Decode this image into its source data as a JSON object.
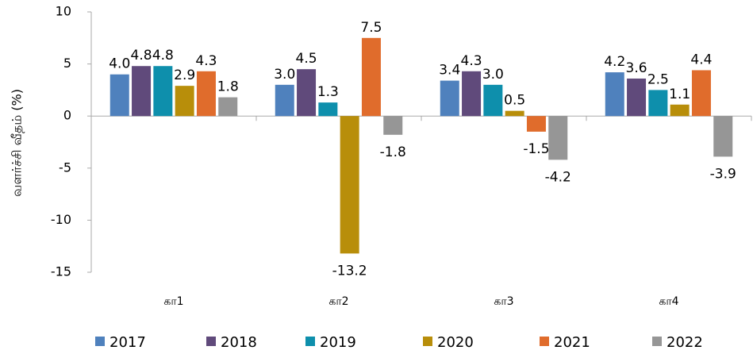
{
  "chart_data": {
    "type": "bar",
    "y_label": "வளர்ச்சி வீதம் (%)",
    "categories": [
      "கா1",
      "கா2",
      "கா3",
      "கா4"
    ],
    "series": [
      {
        "name": "2017",
        "color": "#4f81bd",
        "values": [
          4.0,
          3.0,
          3.4,
          4.2
        ],
        "value_labels": [
          "4.0",
          "3.0",
          "3.4",
          "4.2"
        ]
      },
      {
        "name": "2018",
        "color": "#604a7b",
        "values": [
          4.8,
          4.5,
          4.3,
          3.6
        ],
        "value_labels": [
          "4.8",
          "4.5",
          "4.3",
          "3.6"
        ]
      },
      {
        "name": "2019",
        "color": "#0e8fac",
        "values": [
          4.8,
          1.3,
          3.0,
          2.5
        ],
        "value_labels": [
          "4.8",
          "1.3",
          "3.0",
          "2.5"
        ]
      },
      {
        "name": "2020",
        "color": "#b88e0a",
        "values": [
          2.9,
          -13.2,
          0.5,
          1.1
        ],
        "value_labels": [
          "2.9",
          "-13.2",
          "0.5",
          "1.1"
        ]
      },
      {
        "name": "2021",
        "color": "#e06c2c",
        "values": [
          4.3,
          7.5,
          -1.5,
          4.4
        ],
        "value_labels": [
          "4.3",
          "7.5",
          "-1.5",
          "4.4"
        ]
      },
      {
        "name": "2022",
        "color": "#969696",
        "values": [
          1.8,
          -1.8,
          -4.2,
          -3.9
        ],
        "value_labels": [
          "1.8",
          "-1.8",
          "-4.2",
          "-3.9"
        ]
      }
    ],
    "ylim": [
      -15,
      10
    ],
    "yticks": [
      -15,
      -10,
      -5,
      0,
      5,
      10
    ],
    "grid": false,
    "legend": "bottom"
  }
}
